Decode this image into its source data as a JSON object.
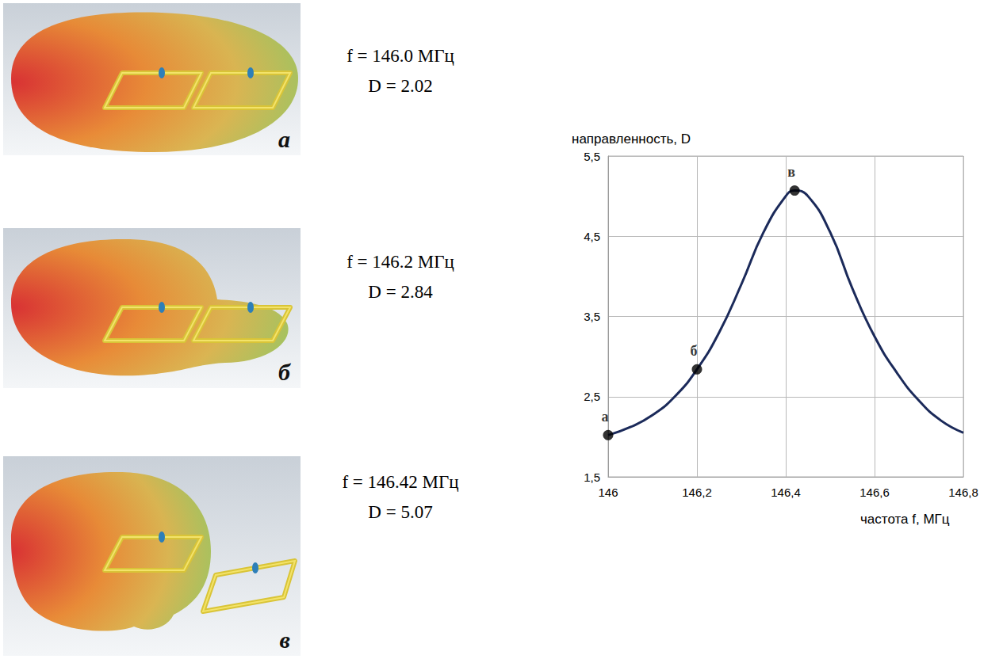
{
  "panels": [
    {
      "letter": "а",
      "f_text": "f = 146.0 МГц",
      "d_text": "D = 2.02"
    },
    {
      "letter": "б",
      "f_text": "f = 146.2 МГц",
      "d_text": "D = 2.84"
    },
    {
      "letter": "в",
      "f_text": "f = 146.42 МГц",
      "d_text": "D = 5.07"
    }
  ],
  "chart_data": {
    "type": "line",
    "y_label": "направленность, D",
    "x_label": "частота f, МГц",
    "series": [
      {
        "type": "line",
        "color": "#1b2a5a",
        "line_style": "solid",
        "marker": "none",
        "x": [
          146.0,
          146.05,
          146.1,
          146.15,
          146.2,
          146.25,
          146.3,
          146.35,
          146.4,
          146.42,
          146.45,
          146.5,
          146.55,
          146.6,
          146.65,
          146.7,
          146.75,
          146.8
        ],
        "values": [
          2.02,
          2.12,
          2.27,
          2.5,
          2.84,
          3.3,
          3.9,
          4.55,
          5.0,
          5.07,
          5.0,
          4.55,
          3.85,
          3.25,
          2.8,
          2.45,
          2.2,
          2.05
        ]
      },
      {
        "type": "scatter",
        "color": "#000000",
        "marker": "circle",
        "x": [
          146.0,
          146.2,
          146.42
        ],
        "values": [
          2.02,
          2.84,
          5.07
        ],
        "labels": [
          "а",
          "б",
          "в"
        ]
      }
    ],
    "xlim": [
      146,
      146.8
    ],
    "xticks": [
      146,
      {
        "value": 146.2,
        "label": "146,2"
      },
      {
        "value": 146.4,
        "label": "146,4"
      },
      {
        "value": 146.6,
        "label": "146,6"
      },
      {
        "value": 146.8,
        "label": "146,8"
      }
    ],
    "ylim": [
      1.5,
      5.5
    ],
    "yticks": [
      {
        "value": 1.5,
        "label": "1,5"
      },
      {
        "value": 2.5,
        "label": "2,5"
      },
      {
        "value": 3.5,
        "label": "3,5"
      },
      {
        "value": 4.5,
        "label": "4,5"
      },
      {
        "value": 5.5,
        "label": "5,5"
      }
    ],
    "grid": true
  }
}
